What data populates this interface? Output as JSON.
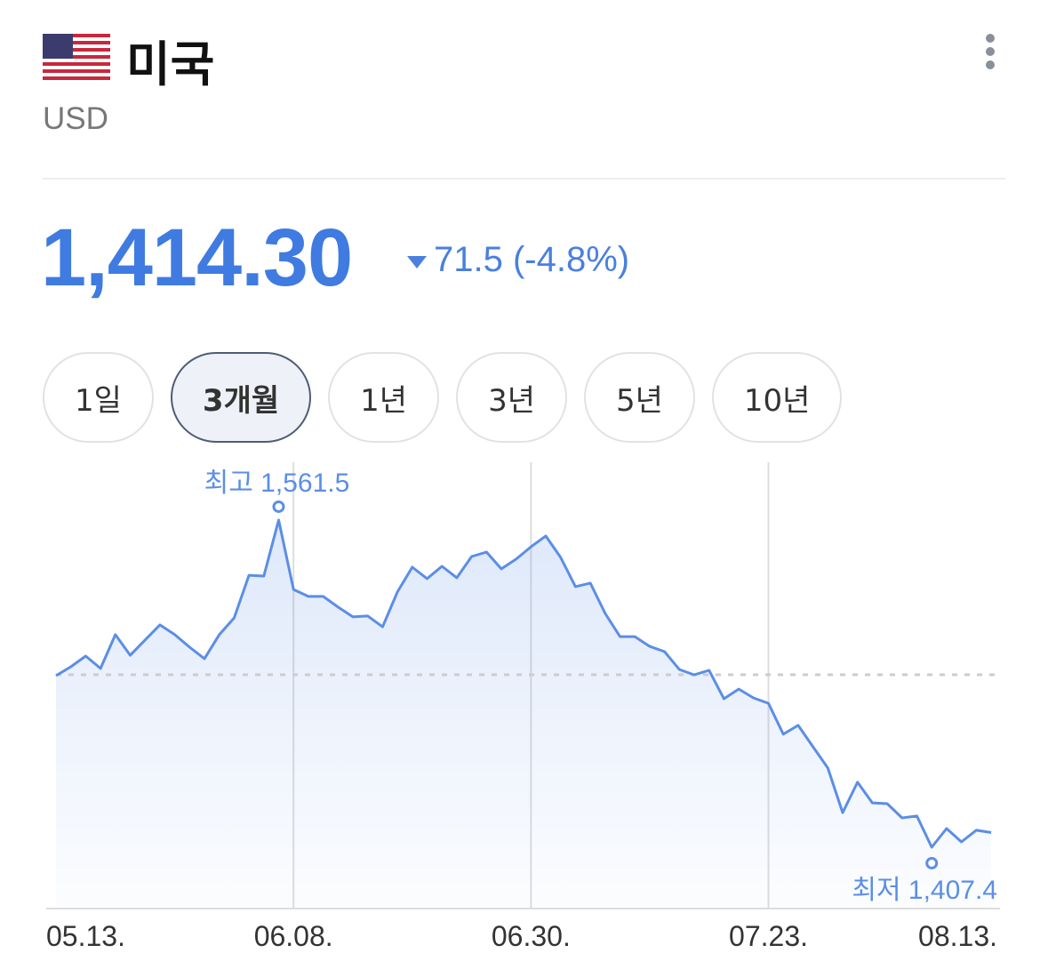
{
  "header": {
    "title": "미국",
    "subtitle": "USD"
  },
  "quote": {
    "price": "1,414.30",
    "change": "71.5 (-4.8%)"
  },
  "tabs": {
    "items": [
      "1일",
      "3개월",
      "1년",
      "3년",
      "5년",
      "10년"
    ],
    "selected": "3개월"
  },
  "chart_data": {
    "type": "line",
    "categories": [
      "05.13.",
      null,
      null,
      null,
      null,
      null,
      null,
      null,
      null,
      null,
      null,
      null,
      null,
      null,
      null,
      null,
      "06.08.",
      null,
      null,
      null,
      null,
      null,
      null,
      null,
      null,
      null,
      null,
      null,
      null,
      null,
      null,
      null,
      "06.30.",
      null,
      null,
      null,
      null,
      null,
      null,
      null,
      null,
      null,
      null,
      null,
      null,
      null,
      null,
      null,
      "07.23.",
      null,
      null,
      null,
      null,
      null,
      null,
      null,
      null,
      null,
      null,
      null,
      null,
      null,
      null,
      "08.13."
    ],
    "series": [
      {
        "color": "#5b8ee6",
        "values": [
          1488.2,
          1492.4,
          1497.4,
          1491.6,
          1507.5,
          1497.8,
          1505.0,
          1512.1,
          1507.5,
          1501.6,
          1496.2,
          1507.5,
          1515.4,
          1535.5,
          1535.1,
          1561.5,
          1528.8,
          1525.5,
          1525.5,
          1520.5,
          1515.9,
          1516.3,
          1511.2,
          1527.6,
          1539.3,
          1533.9,
          1539.7,
          1534.3,
          1544.3,
          1546.4,
          1538.5,
          1543.1,
          1548.9,
          1554.0,
          1543.9,
          1530.1,
          1531.8,
          1517.5,
          1506.6,
          1506.6,
          1502.0,
          1499.5,
          1491.1,
          1488.6,
          1490.7,
          1477.3,
          1481.9,
          1477.7,
          1475.2,
          1460.6,
          1464.8,
          1454.7,
          1444.7,
          1423.7,
          1438.0,
          1428.3,
          1427.9,
          1421.2,
          1422.1,
          1407.4,
          1416.2,
          1409.9,
          1415.4,
          1414.3
        ]
      }
    ],
    "ylim": [
      1378.5,
      1588.7
    ],
    "reference_line": 1488.6,
    "annotations": {
      "max": "최고 1,561.5",
      "min": "최저 1,407.4"
    },
    "grid": true
  }
}
